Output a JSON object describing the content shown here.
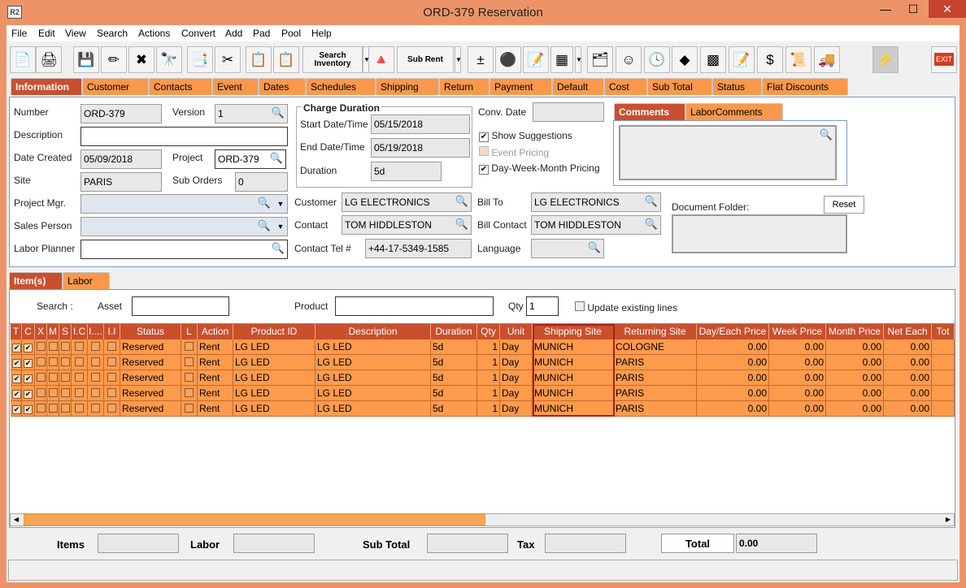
{
  "window": {
    "title": "ORD-379 Reservation",
    "logo": "R2",
    "minimize": "—",
    "maximize": "☐",
    "close": "✕"
  },
  "menu": [
    "File",
    "Edit",
    "View",
    "Search",
    "Actions",
    "Convert",
    "Add",
    "Pad",
    "Pool",
    "Help"
  ],
  "toolbar": {
    "search_inventory": "Search Inventory",
    "sub_rent": "Sub Rent",
    "exit": "EXIT",
    "icons": [
      "new-document-icon",
      "print-icon",
      "save-icon",
      "edit-pencil-icon",
      "delete-icon",
      "binoculars-icon",
      "convert-icon",
      "cut-icon",
      "copy-icon",
      "paste-icon",
      "search-inventory-icon",
      "shapes-icon",
      "sub-rent-icon",
      "add-remove-icon",
      "pool-icon",
      "notepad-icon",
      "calculator-icon",
      "org-chart-icon",
      "smiley-icon",
      "schedule-icon",
      "eraser-icon",
      "stack-icon",
      "edit-form-icon",
      "payment-icon",
      "invoice-icon",
      "truck-icon",
      "bolt-icon",
      "exit-icon"
    ]
  },
  "tabs": [
    "Information",
    "Customer",
    "Contacts",
    "Event",
    "Dates",
    "Schedules",
    "Shipping",
    "Return",
    "Payment",
    "Default",
    "Cost",
    "Sub Total",
    "Status",
    "Flat Discounts"
  ],
  "info": {
    "number_label": "Number",
    "number": "ORD-379",
    "version_label": "Version",
    "version": "1",
    "description_label": "Description",
    "description": "",
    "date_created_label": "Date Created",
    "date_created": "05/09/2018",
    "project_label": "Project",
    "project": "ORD-379",
    "site_label": "Site",
    "site": "PARIS",
    "sub_orders_label": "Sub Orders",
    "sub_orders": "0",
    "project_mgr_label": "Project Mgr.",
    "sales_person_label": "Sales Person",
    "labor_planner_label": "Labor Planner",
    "charge_duration_label": "Charge Duration",
    "start_label": "Start Date/Time",
    "start": "05/15/2018",
    "end_label": "End Date/Time",
    "end": "05/19/2018",
    "duration_label": "Duration",
    "duration": "5d",
    "conv_date_label": "Conv. Date",
    "show_suggestions": "Show Suggestions",
    "event_pricing": "Event Pricing",
    "dwm_pricing": "Day-Week-Month Pricing",
    "customer_label": "Customer",
    "customer": "LG ELECTRONICS",
    "contact_label": "Contact",
    "contact": "TOM HIDDLESTON",
    "contact_tel_label": "Contact Tel #",
    "contact_tel": "+44-17-5349-1585",
    "bill_to_label": "Bill To",
    "bill_to": "LG ELECTRONICS",
    "bill_contact_label": "Bill Contact",
    "bill_contact": "TOM HIDDLESTON",
    "language_label": "Language",
    "comments_tab": "Comments",
    "labor_comments_tab": "LaborComments",
    "document_folder_label": "Document Folder:",
    "reset": "Reset"
  },
  "lower_tabs": [
    "Item(s)",
    "Labor"
  ],
  "search": {
    "label": "Search :",
    "asset_label": "Asset",
    "product_label": "Product",
    "qty_label": "Qty",
    "qty": "1",
    "update_existing": "Update existing lines"
  },
  "grid": {
    "columns": [
      "T",
      "C",
      "X",
      "M",
      "S",
      "I.C",
      "I....",
      "I.I",
      "Status",
      "L",
      "Action",
      "Product ID",
      "Description",
      "Duration",
      "Qty",
      "Unit",
      "Shipping Site",
      "Returning Site",
      "Day/Each Price",
      "Week Price",
      "Month Price",
      "Net Each",
      "Tot"
    ],
    "rows": [
      {
        "t": true,
        "c": true,
        "status": "Reserved",
        "action": "Rent",
        "product_id": "LG LED",
        "description": "LG LED",
        "duration": "5d",
        "qty": "1",
        "unit": "Day",
        "shipping_site": "MUNICH",
        "returning_site": "COLOGNE",
        "day_price": "0.00",
        "week_price": "0.00",
        "month_price": "0.00",
        "net_each": "0.00"
      },
      {
        "t": true,
        "c": true,
        "status": "Reserved",
        "action": "Rent",
        "product_id": "LG LED",
        "description": "LG LED",
        "duration": "5d",
        "qty": "1",
        "unit": "Day",
        "shipping_site": "MUNICH",
        "returning_site": "PARIS",
        "day_price": "0.00",
        "week_price": "0.00",
        "month_price": "0.00",
        "net_each": "0.00"
      },
      {
        "t": true,
        "c": true,
        "status": "Reserved",
        "action": "Rent",
        "product_id": "LG LED",
        "description": "LG LED",
        "duration": "5d",
        "qty": "1",
        "unit": "Day",
        "shipping_site": "MUNICH",
        "returning_site": "PARIS",
        "day_price": "0.00",
        "week_price": "0.00",
        "month_price": "0.00",
        "net_each": "0.00"
      },
      {
        "t": true,
        "c": true,
        "status": "Reserved",
        "action": "Rent",
        "product_id": "LG LED",
        "description": "LG LED",
        "duration": "5d",
        "qty": "1",
        "unit": "Day",
        "shipping_site": "MUNICH",
        "returning_site": "PARIS",
        "day_price": "0.00",
        "week_price": "0.00",
        "month_price": "0.00",
        "net_each": "0.00"
      },
      {
        "t": true,
        "c": true,
        "status": "Reserved",
        "action": "Rent",
        "product_id": "LG LED",
        "description": "LG LED",
        "duration": "5d",
        "qty": "1",
        "unit": "Day",
        "shipping_site": "MUNICH",
        "returning_site": "PARIS",
        "day_price": "0.00",
        "week_price": "0.00",
        "month_price": "0.00",
        "net_each": "0.00"
      }
    ]
  },
  "totals": {
    "items_label": "Items",
    "labor_label": "Labor",
    "sub_total_label": "Sub Total",
    "tax_label": "Tax",
    "total_label": "Total",
    "total": "0.00"
  },
  "colors": {
    "accent": "#c94f2f",
    "tab": "#f9984b",
    "row": "#fd9a4c",
    "window": "#ec9468"
  }
}
